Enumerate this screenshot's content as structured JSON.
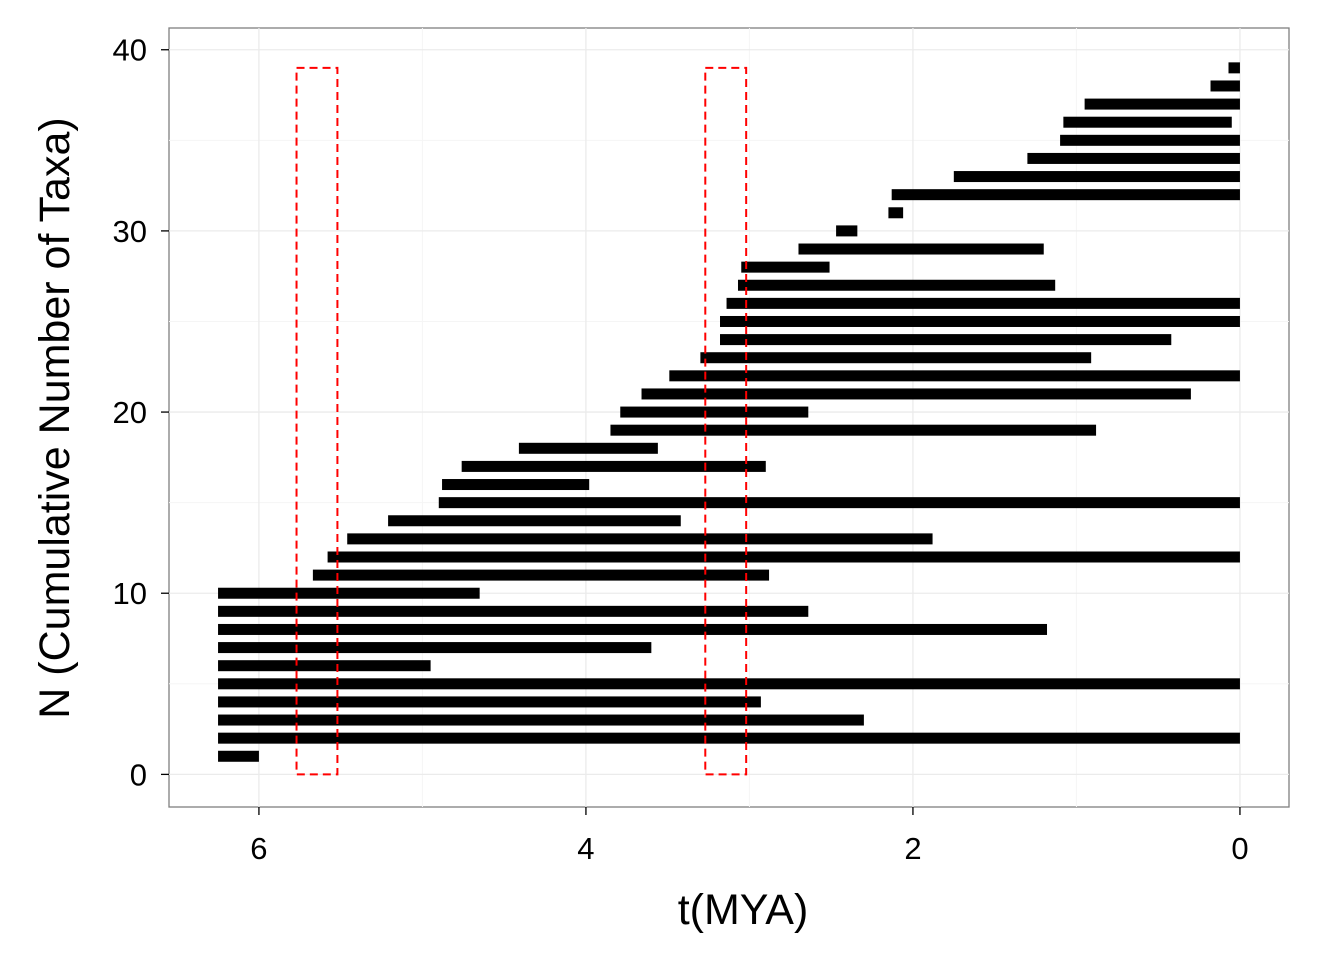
{
  "chart_data": {
    "type": "bar",
    "orientation": "horizontal-range",
    "title": "",
    "xlabel": "t(MYA)",
    "ylabel": "N (Cumulative Number of Taxa)",
    "xlim": [
      6.25,
      0
    ],
    "xlim_padded": [
      6.55,
      -0.3
    ],
    "ylim": [
      -1.8,
      41.2
    ],
    "x_reversed": true,
    "grid": true,
    "legend": "none",
    "x_ticks": [
      6,
      4,
      2,
      0
    ],
    "x_tick_labels": [
      "6",
      "4",
      "2",
      "0"
    ],
    "y_ticks": [
      0,
      10,
      20,
      30,
      40
    ],
    "y_tick_labels": [
      "0",
      "10",
      "20",
      "30",
      "40"
    ],
    "colors": {
      "bar": "#000000",
      "highlight": "#ff0000",
      "grid": "#ebebeb",
      "border": "#7f7f7f"
    },
    "series": [
      {
        "values": [
          {
            "n": 1,
            "start": 6.25,
            "end": 6.0
          },
          {
            "n": 2,
            "start": 6.25,
            "end": 0.0
          },
          {
            "n": 3,
            "start": 6.25,
            "end": 2.3
          },
          {
            "n": 4,
            "start": 6.25,
            "end": 2.93
          },
          {
            "n": 5,
            "start": 6.25,
            "end": 0.0
          },
          {
            "n": 6,
            "start": 6.25,
            "end": 4.95
          },
          {
            "n": 7,
            "start": 6.25,
            "end": 3.6
          },
          {
            "n": 8,
            "start": 6.25,
            "end": 1.18
          },
          {
            "n": 9,
            "start": 6.25,
            "end": 2.64
          },
          {
            "n": 10,
            "start": 6.25,
            "end": 4.65
          },
          {
            "n": 11,
            "start": 5.67,
            "end": 2.88
          },
          {
            "n": 12,
            "start": 5.58,
            "end": 0.0
          },
          {
            "n": 13,
            "start": 5.46,
            "end": 1.88
          },
          {
            "n": 14,
            "start": 5.21,
            "end": 3.42
          },
          {
            "n": 15,
            "start": 4.9,
            "end": 0.0
          },
          {
            "n": 16,
            "start": 4.88,
            "end": 3.98
          },
          {
            "n": 17,
            "start": 4.76,
            "end": 2.9
          },
          {
            "n": 18,
            "start": 4.41,
            "end": 3.56
          },
          {
            "n": 19,
            "start": 3.85,
            "end": 0.88
          },
          {
            "n": 20,
            "start": 3.79,
            "end": 2.64
          },
          {
            "n": 21,
            "start": 3.66,
            "end": 0.3
          },
          {
            "n": 22,
            "start": 3.49,
            "end": 0.0
          },
          {
            "n": 23,
            "start": 3.3,
            "end": 0.91
          },
          {
            "n": 24,
            "start": 3.18,
            "end": 0.42
          },
          {
            "n": 25,
            "start": 3.18,
            "end": 0.0
          },
          {
            "n": 26,
            "start": 3.14,
            "end": 0.0
          },
          {
            "n": 27,
            "start": 3.07,
            "end": 1.13
          },
          {
            "n": 28,
            "start": 3.05,
            "end": 2.51
          },
          {
            "n": 29,
            "start": 2.7,
            "end": 1.2
          },
          {
            "n": 30,
            "start": 2.47,
            "end": 2.34
          },
          {
            "n": 31,
            "start": 2.15,
            "end": 2.06
          },
          {
            "n": 32,
            "start": 2.13,
            "end": 0.0
          },
          {
            "n": 33,
            "start": 1.75,
            "end": 0.0
          },
          {
            "n": 34,
            "start": 1.3,
            "end": 0.0
          },
          {
            "n": 35,
            "start": 1.1,
            "end": 0.0
          },
          {
            "n": 36,
            "start": 1.08,
            "end": 0.05
          },
          {
            "n": 37,
            "start": 0.95,
            "end": 0.0
          },
          {
            "n": 38,
            "start": 0.18,
            "end": 0.0
          },
          {
            "n": 39,
            "start": 0.07,
            "end": 0.0
          }
        ]
      }
    ],
    "highlight_boxes": [
      {
        "t_start": 5.77,
        "t_end": 5.52,
        "n_bottom": 0,
        "n_top": 39
      },
      {
        "t_start": 3.27,
        "t_end": 3.02,
        "n_bottom": 0,
        "n_top": 39
      }
    ]
  }
}
